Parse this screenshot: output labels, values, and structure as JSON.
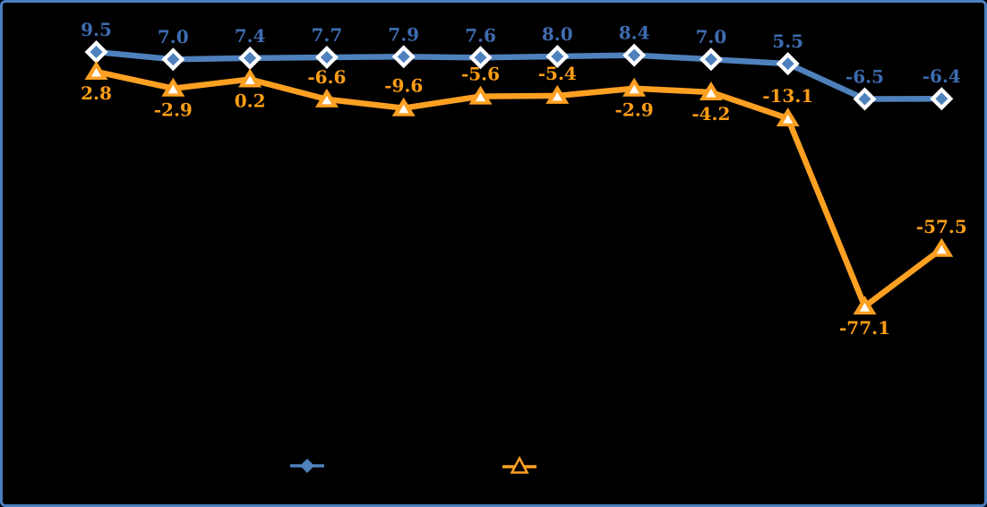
{
  "frame": {
    "background": "#000000",
    "border_color": "#4A80C0"
  },
  "chart_data": {
    "type": "line",
    "title": "",
    "xlabel": "",
    "ylabel": "",
    "axes_visible": false,
    "gridlines": false,
    "categories": [
      "",
      "",
      "",
      "",
      "",
      "",
      "",
      "",
      "",
      "",
      "",
      ""
    ],
    "value_label_format": "0.0",
    "series": [
      {
        "name": "series-1",
        "marker": "diamond",
        "line_color": "#4F81BD",
        "marker_core_color": "#4F81BD",
        "marker_ring_color": "#FFFFFF",
        "label_color": "#3E6CB0",
        "values": [
          9.5,
          7.0,
          7.4,
          7.7,
          7.9,
          7.6,
          8.0,
          8.4,
          7.0,
          5.5,
          -6.5,
          -6.4
        ],
        "label_positions": [
          "above",
          "above",
          "above",
          "above",
          "above",
          "above",
          "above",
          "above",
          "above",
          "above",
          "above",
          "above"
        ]
      },
      {
        "name": "series-2",
        "marker": "triangle",
        "line_color": "#FEA022",
        "marker_core_color": "#FFFFFF",
        "marker_ring_color": "#FEA022",
        "label_color": "#FF9E15",
        "values": [
          2.8,
          -2.9,
          0.2,
          -6.6,
          -9.6,
          -5.6,
          -5.4,
          -2.9,
          -4.2,
          -13.1,
          -77.1,
          -57.5
        ],
        "label_positions": [
          "below",
          "below",
          "below",
          "above",
          "above",
          "above",
          "above",
          "below",
          "below",
          "above",
          "below",
          "above"
        ]
      }
    ],
    "legend": {
      "position": "bottom",
      "items": [
        {
          "series": "series-1",
          "marker": "diamond",
          "color": "#4F81BD",
          "label": ""
        },
        {
          "series": "series-2",
          "marker": "triangle",
          "color": "#FEA022",
          "label": ""
        }
      ]
    }
  }
}
